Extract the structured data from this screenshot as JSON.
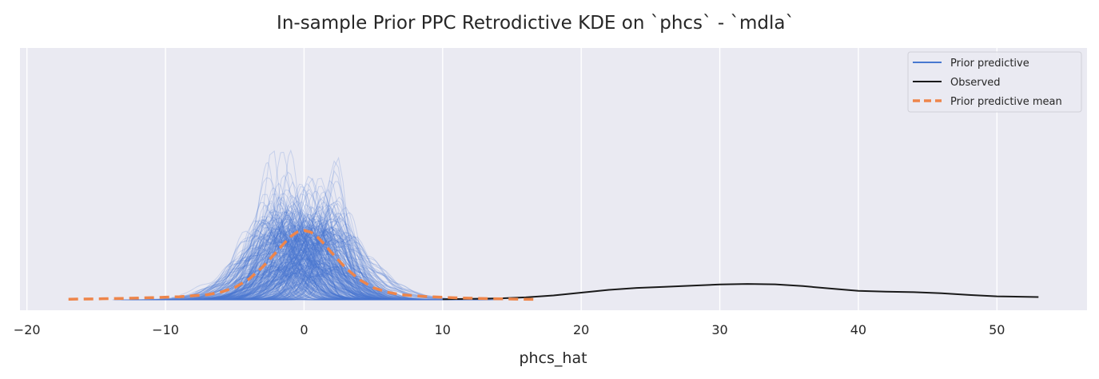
{
  "colors": {
    "background": "#eaeaf2",
    "grid": "#ffffff",
    "prior_predictive": "#4878d0",
    "observed": "#1a1a1a",
    "prior_predictive_mean": "#ee854a"
  },
  "chart_data": {
    "type": "line",
    "title": "In-sample Prior PPC Retrodictive KDE on `phcs` - `mdla`",
    "xlabel": "phcs_hat",
    "ylabel": "",
    "xlim": [
      -20.5,
      56.5
    ],
    "ylim": [
      0,
      0.31
    ],
    "x_ticks": [
      -20,
      -10,
      0,
      10,
      20,
      30,
      40,
      50
    ],
    "x_tick_labels": [
      "−20",
      "−10",
      "0",
      "10",
      "20",
      "30",
      "40",
      "50"
    ],
    "y_ticks_shown": false,
    "grid": "vertical",
    "legend": {
      "position": "top-right",
      "entries": [
        {
          "label": "Prior predictive",
          "style": "solid",
          "color": "#4878d0"
        },
        {
          "label": "Observed",
          "style": "solid",
          "color": "#1a1a1a"
        },
        {
          "label": "Prior predictive mean",
          "style": "dashed",
          "color": "#ee854a"
        }
      ]
    },
    "series": [
      {
        "name": "Observed",
        "style": "solid",
        "x": [
          10,
          12,
          14,
          16,
          18,
          20,
          22,
          24,
          26,
          28,
          30,
          32,
          34,
          36,
          38,
          40,
          42,
          44,
          46,
          48,
          50,
          53
        ],
        "y": [
          0.0008,
          0.0012,
          0.0018,
          0.0032,
          0.0056,
          0.0092,
          0.0128,
          0.0152,
          0.0166,
          0.0182,
          0.0196,
          0.0204,
          0.0198,
          0.0176,
          0.0144,
          0.0116,
          0.0104,
          0.0098,
          0.0084,
          0.0062,
          0.0045,
          0.0036
        ]
      },
      {
        "name": "Prior predictive mean",
        "style": "dashed",
        "x": [
          -17,
          -15,
          -13,
          -11,
          -9,
          -7,
          -6,
          -5,
          -4,
          -3,
          -2,
          -1.5,
          -1,
          -0.5,
          0,
          0.5,
          1,
          1.5,
          2,
          3,
          4,
          5,
          6,
          7,
          9,
          11,
          13,
          15,
          16.7
        ],
        "y": [
          0.0008,
          0.0012,
          0.0018,
          0.0028,
          0.004,
          0.0065,
          0.0098,
          0.0158,
          0.0262,
          0.0418,
          0.0612,
          0.0712,
          0.0806,
          0.0868,
          0.0888,
          0.0866,
          0.0798,
          0.0706,
          0.0602,
          0.0408,
          0.0258,
          0.0156,
          0.0098,
          0.0065,
          0.004,
          0.0026,
          0.0016,
          0.001,
          0.0006
        ]
      },
      {
        "name": "Prior predictive",
        "style": "ensemble",
        "draws": 400,
        "x_range": [
          -14,
          15
        ],
        "peak_range": [
          0.04,
          0.3
        ],
        "center_range": [
          -3,
          2.5
        ],
        "spread_range": [
          0.7,
          3.2
        ]
      }
    ]
  }
}
